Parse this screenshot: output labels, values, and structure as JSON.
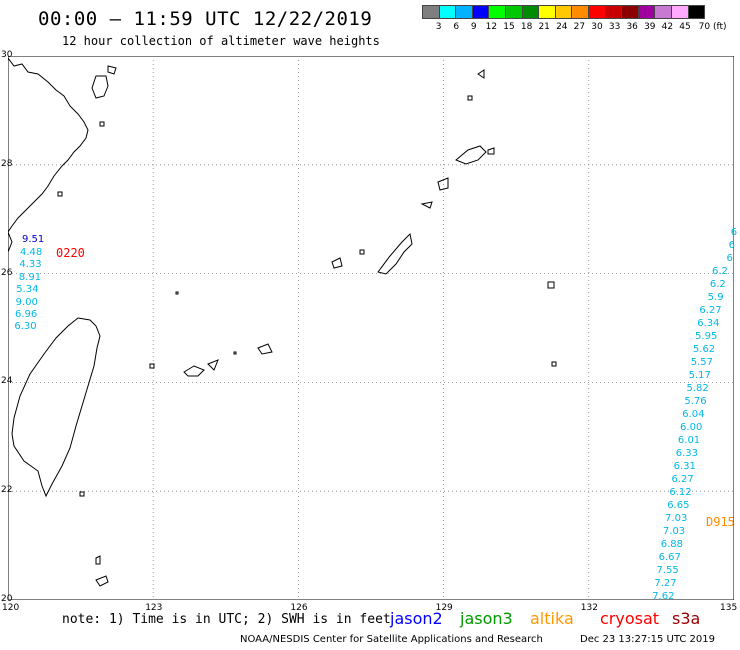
{
  "title": "00:00 – 11:59 UTC 12/22/2019",
  "subtitle": "12 hour collection of altimeter wave heights",
  "colorbar": {
    "colors": [
      "#7f7f7f",
      "#00ffff",
      "#00b2ff",
      "#0000ff",
      "#00ff00",
      "#00c800",
      "#008c00",
      "#ffff00",
      "#ffc800",
      "#ff8c00",
      "#ff0000",
      "#c80000",
      "#8c0000",
      "#a000a0",
      "#c87ad2",
      "#ffaaff",
      "#000000"
    ],
    "labels": [
      "3",
      "6",
      "9",
      "12",
      "15",
      "18",
      "21",
      "24",
      "27",
      "30",
      "33",
      "36",
      "39",
      "42",
      "45",
      "70 (ft)"
    ]
  },
  "map": {
    "lon_labels": [
      "120",
      "123",
      "126",
      "129",
      "132",
      "135"
    ],
    "lat_labels": [
      "20",
      "22",
      "24",
      "26",
      "28",
      "30"
    ]
  },
  "passes": [
    {
      "id": "0220",
      "color": "#ff0000"
    },
    {
      "id": "D915",
      "color": "#ff8c00"
    }
  ],
  "track_west": {
    "color": "#00b8e6",
    "first": {
      "value": "9.51",
      "color": "#0000cc"
    },
    "values": [
      "4.48",
      "4.33",
      "8.91",
      "5.34",
      "9.00",
      "6.96",
      "6.30"
    ]
  },
  "track_east": {
    "color": "#00b8e6",
    "values": [
      "6",
      "6",
      "6",
      "6.2",
      "6.2",
      "5.9",
      "6.27",
      "6.34",
      "5.95",
      "5.62",
      "5.57",
      "5.17",
      "5.82",
      "5.76",
      "6.04",
      "6.00",
      "6.01",
      "6.33",
      "6.31",
      "6.27",
      "6.12",
      "6.65",
      "7.03",
      "7.03",
      "6.88",
      "6.67",
      "7.55",
      "7.27",
      "7.62"
    ]
  },
  "note": "note: 1) Time is in UTC; 2) SWH is in feet",
  "satellites": [
    {
      "name": "jason2",
      "color": "#0000ff"
    },
    {
      "name": "jason3",
      "color": "#009900"
    },
    {
      "name": "altika",
      "color": "#ff9900"
    },
    {
      "name": "cryosat",
      "color": "#ff0000"
    },
    {
      "name": "s3a",
      "color": "#990000"
    }
  ],
  "credit": "NOAA/NESDIS Center for Satellite Applications and Research",
  "credit_time": "Dec 23 13:27:15 UTC 2019"
}
